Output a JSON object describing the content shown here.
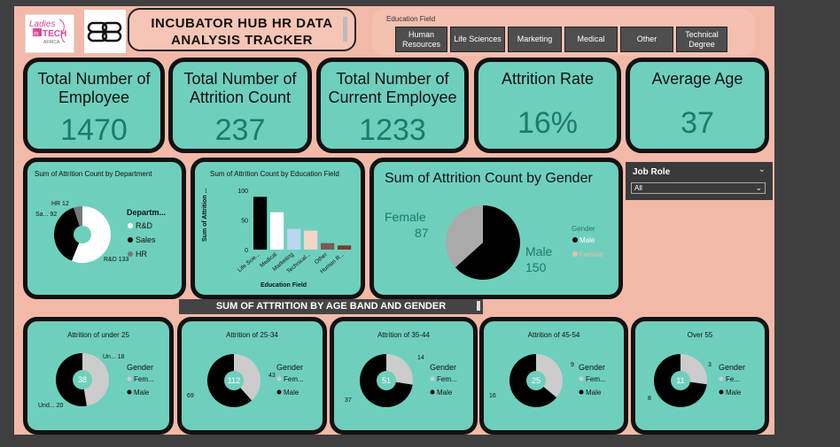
{
  "header": {
    "logo_text": [
      "Ladies",
      "in",
      "TECH",
      "AFRICA"
    ],
    "logo2_text": "BB",
    "title_line1": "INCUBATOR HUB HR DATA",
    "title_line2": "ANALYSIS  TRACKER"
  },
  "education_slicer": {
    "title": "Education Field",
    "options": [
      "Human Resources",
      "Life Sciences",
      "Marketing",
      "Medical",
      "Other",
      "Technical Degree"
    ]
  },
  "kpis": [
    {
      "label": "Total Number of Employee",
      "value": "1470"
    },
    {
      "label": "Total Number of Attrition Count",
      "value": "237"
    },
    {
      "label": "Total Number of Current Employee",
      "value": "1233"
    },
    {
      "label": "Attrition Rate",
      "value": "16%"
    },
    {
      "label": "Average Age",
      "value": "37"
    }
  ],
  "job_role": {
    "title": "Job Role",
    "selected": "All"
  },
  "banner": "SUM OF ATTRITION BY AGE BAND AND GENDER",
  "colors": {
    "teal": "#6fcfbd",
    "salmon": "#f2b9a8",
    "black": "#000000",
    "gray": "#aaaaaa",
    "brown": "#7a3b2e",
    "value_text": "#1d7a6c"
  },
  "chart_data": [
    {
      "type": "pie",
      "title": "Sum of Attrition Count by Department",
      "legend_title": "Departm...",
      "categories": [
        "R&D",
        "Sales",
        "HR"
      ],
      "values": [
        133,
        92,
        12
      ],
      "point_labels": [
        "R&D 133",
        "Sa... 92",
        "HR 12"
      ],
      "colors": [
        "#ffffff",
        "#000000",
        "#777777"
      ],
      "donut": true
    },
    {
      "type": "bar",
      "title": "Sum of Attrition Count by Education Field",
      "xlabel": "Education Field",
      "ylabel": "Sum of Attrition ...",
      "categories": [
        "Life Scie...",
        "Medical",
        "Marketing",
        "Technical...",
        "Other",
        "Human R..."
      ],
      "values": [
        89,
        63,
        35,
        32,
        11,
        7
      ],
      "colors": [
        "#000000",
        "#ffffff",
        "#b8d8f0",
        "#f2d6c6",
        "#7a5a55",
        "#7a3b2e"
      ],
      "ylim": [
        0,
        100
      ],
      "yticks": [
        0,
        50,
        100
      ]
    },
    {
      "type": "pie",
      "title": "Sum of Attrition Count by Gender",
      "legend_title": "Gender",
      "categories": [
        "Male",
        "Female"
      ],
      "values": [
        150,
        87
      ],
      "labels": {
        "Female": "Female",
        "Female_val": "87",
        "Male": "Male",
        "Male_val": "150"
      },
      "colors": [
        "#000000",
        "#aaaaaa"
      ]
    },
    {
      "type": "pie",
      "title": "Attrition of under 25",
      "center": "38",
      "legend_title": "Gender",
      "legend_items": [
        "Fem...",
        "Male"
      ],
      "categories": [
        "Female",
        "Male"
      ],
      "values": [
        18,
        20
      ],
      "point_labels": [
        "Un... 18",
        "Und... 20"
      ],
      "colors": [
        "#cccccc",
        "#000000"
      ],
      "donut": true
    },
    {
      "type": "pie",
      "title": "Attrition of 25-34",
      "center": "112",
      "legend_title": "Gender",
      "legend_items": [
        "Fem...",
        "Male"
      ],
      "categories": [
        "Female",
        "Male"
      ],
      "values": [
        43,
        69
      ],
      "point_labels": [
        "43",
        "69"
      ],
      "colors": [
        "#cccccc",
        "#000000"
      ],
      "donut": true
    },
    {
      "type": "pie",
      "title": "Attrition of 35-44",
      "center": "51",
      "legend_title": "Gender",
      "legend_items": [
        "Fem...",
        "Male"
      ],
      "categories": [
        "Female",
        "Male"
      ],
      "values": [
        14,
        37
      ],
      "point_labels": [
        "14",
        "37"
      ],
      "colors": [
        "#cccccc",
        "#000000"
      ],
      "donut": true
    },
    {
      "type": "pie",
      "title": "Attrition of 45-54",
      "center": "25",
      "legend_title": "Gender",
      "legend_items": [
        "Fem...",
        "Male"
      ],
      "categories": [
        "Female",
        "Male"
      ],
      "values": [
        9,
        16
      ],
      "point_labels": [
        "9",
        "16"
      ],
      "colors": [
        "#cccccc",
        "#000000"
      ],
      "donut": true
    },
    {
      "type": "pie",
      "title": "Over 55",
      "center": "11",
      "legend_title": "Gender",
      "legend_items": [
        "Fe...",
        "Male"
      ],
      "categories": [
        "Female",
        "Male"
      ],
      "values": [
        3,
        8
      ],
      "point_labels": [
        "3",
        "8"
      ],
      "colors": [
        "#cccccc",
        "#000000"
      ],
      "donut": true
    }
  ]
}
